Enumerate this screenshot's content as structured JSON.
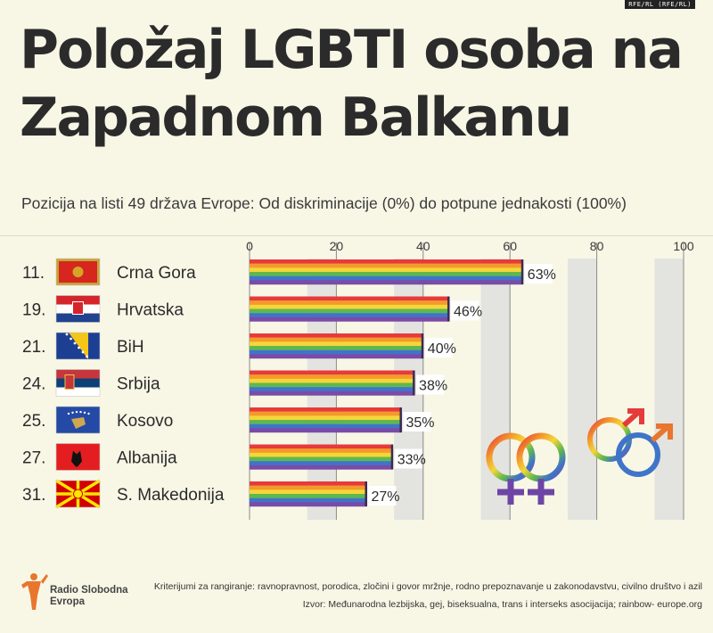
{
  "corner_tag": "RFE/RL (RFE/RL)",
  "title": "Položaj LGBTI osoba na Zapadnom Balkanu",
  "subtitle": "Pozicija na listi 49 država Evrope: Od diskriminacije (0%) do potpune jednakosti (100%)",
  "chart_data": {
    "type": "bar",
    "orientation": "horizontal",
    "xlim": [
      0,
      100
    ],
    "xticks": [
      0,
      20,
      40,
      60,
      80,
      100
    ],
    "value_suffix": "%",
    "grid": true,
    "rows": [
      {
        "rank": "11.",
        "country": "Crna Gora",
        "flag": "montenegro",
        "value": 63
      },
      {
        "rank": "19.",
        "country": "Hrvatska",
        "flag": "croatia",
        "value": 46
      },
      {
        "rank": "21.",
        "country": "BiH",
        "flag": "bih",
        "value": 40
      },
      {
        "rank": "24.",
        "country": "Srbija",
        "flag": "serbia",
        "value": 38
      },
      {
        "rank": "25.",
        "country": "Kosovo",
        "flag": "kosovo",
        "value": 35
      },
      {
        "rank": "27.",
        "country": "Albanija",
        "flag": "albania",
        "value": 33
      },
      {
        "rank": "31.",
        "country": "S. Makedonija",
        "flag": "north-macedonia",
        "value": 27
      }
    ],
    "rainbow_colors": [
      "#e63b3b",
      "#f39a2b",
      "#f4d63a",
      "#5fb84d",
      "#3f74c9",
      "#7b4ba6"
    ]
  },
  "logo": {
    "line1": "Radio Slobodna",
    "line2": "Evropa",
    "color": "#e8762d"
  },
  "footnotes": {
    "criteria": "Kriterijumi za rangiranje: ravnopravnost, porodica, zločini i govor mržnje, rodno prepoznavanje u zakonodavstvu, civilno društvo i azil",
    "source": "Izvor: Međunarodna lezbijska, gej, biseksualna, trans i interseks asocijacija; rainbow- europe.org"
  }
}
